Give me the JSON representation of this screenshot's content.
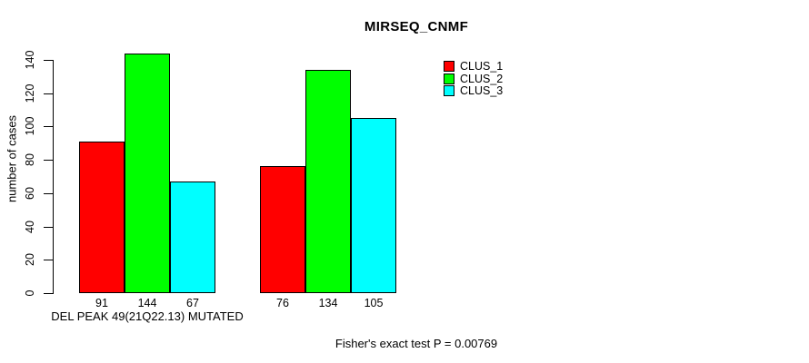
{
  "chart_data": {
    "type": "bar",
    "title": "MIRSEQ_CNMF",
    "ylabel": "number of cases",
    "xlabel": "",
    "ylim": [
      0,
      140
    ],
    "yticks": [
      0,
      20,
      40,
      60,
      80,
      100,
      120,
      140
    ],
    "categories": [
      "DEL PEAK 49(21Q22.13) MUTATED",
      ""
    ],
    "series": [
      {
        "name": "CLUS_1",
        "color": "#FF0000",
        "values": [
          91,
          76
        ]
      },
      {
        "name": "CLUS_2",
        "color": "#00FF00",
        "values": [
          144,
          134
        ]
      },
      {
        "name": "CLUS_3",
        "color": "#00FFFF",
        "values": [
          67,
          105
        ]
      }
    ],
    "bar_value_labels": [
      [
        91,
        144,
        67
      ],
      [
        76,
        134,
        105
      ]
    ],
    "legend": [
      {
        "label": "CLUS_1",
        "color": "#FF0000"
      },
      {
        "label": "CLUS_2",
        "color": "#00FF00"
      },
      {
        "label": "CLUS_3",
        "color": "#00FFFF"
      }
    ],
    "legend_position": "top-right",
    "grid": false,
    "annotation": "Fisher's exact test P = 0.00769",
    "axis_color": "#000000",
    "background_color": "#FFFFFF"
  }
}
